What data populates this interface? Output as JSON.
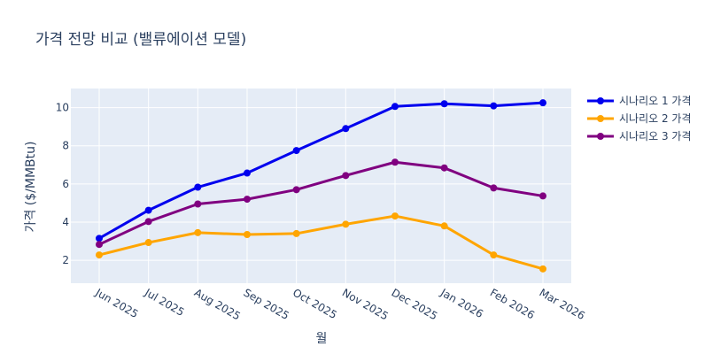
{
  "chart_data": {
    "type": "line",
    "title": "가격 전망 비교 (밸류에이션 모델)",
    "xlabel": "월",
    "ylabel": "가격 ($/MMBtu)",
    "categories": [
      "Jun 2025",
      "Jul 2025",
      "Aug 2025",
      "Sep 2025",
      "Oct 2025",
      "Nov 2025",
      "Dec 2025",
      "Jan 2026",
      "Feb 2026",
      "Mar 2026"
    ],
    "ylim": [
      0.8,
      11
    ],
    "yticks": [
      2,
      4,
      6,
      8,
      10
    ],
    "grid": true,
    "legend_position": "top-right",
    "series": [
      {
        "name": "시나리오 1 가격",
        "color": "#0000ee",
        "values": [
          3.15,
          4.62,
          5.83,
          6.57,
          7.75,
          8.9,
          10.06,
          10.2,
          10.09,
          10.25
        ]
      },
      {
        "name": "시나리오 2 가격",
        "color": "#ffa500",
        "values": [
          2.28,
          2.93,
          3.45,
          3.35,
          3.4,
          3.89,
          4.32,
          3.8,
          2.28,
          1.55
        ]
      },
      {
        "name": "시나리오 3 가격",
        "color": "#800080",
        "values": [
          2.83,
          4.03,
          4.95,
          5.2,
          5.7,
          6.44,
          7.14,
          6.84,
          5.79,
          5.37
        ]
      }
    ]
  }
}
